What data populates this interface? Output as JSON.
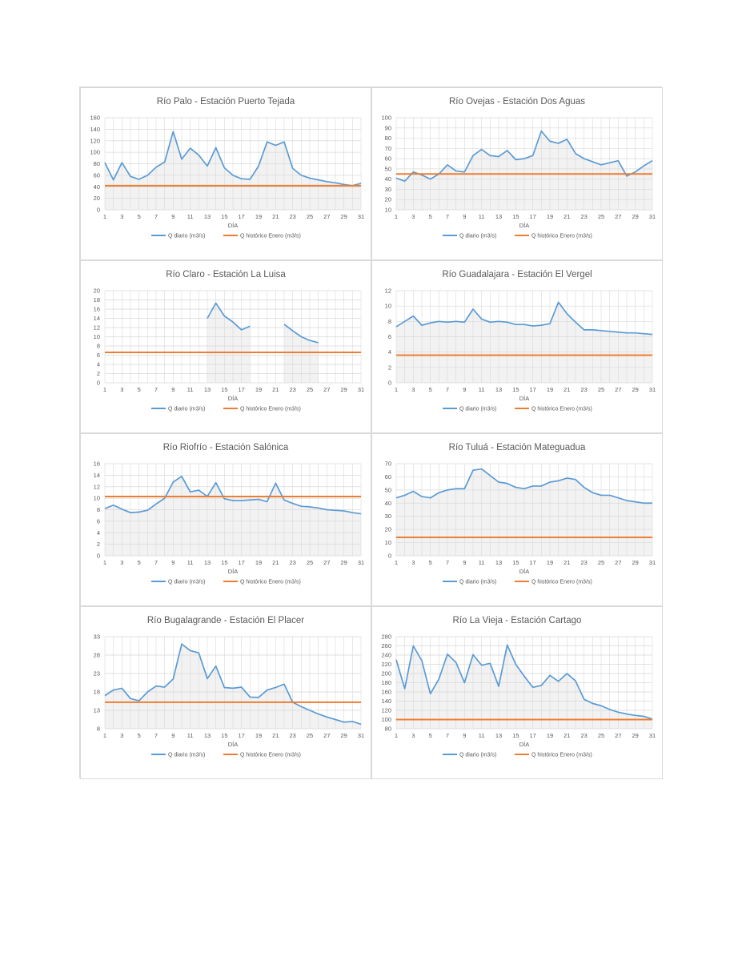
{
  "colors": {
    "daily": "#5b9bd5",
    "historic": "#ed7d31",
    "grid": "#d9d9d9",
    "text": "#595959"
  },
  "chart_data": [
    {
      "type": "line",
      "title": "Río Palo - Estación Puerto Tejada",
      "xlabel": "DÍA",
      "ylabel": "",
      "ylim": [
        0,
        160
      ],
      "yticks": [
        0,
        20,
        40,
        60,
        80,
        100,
        120,
        140,
        160
      ],
      "xtick_labels": [
        "1",
        "3",
        "5",
        "7",
        "9",
        "11",
        "13",
        "15",
        "17",
        "19",
        "21",
        "23",
        "25",
        "27",
        "29",
        "31"
      ],
      "x": [
        1,
        2,
        3,
        4,
        5,
        6,
        7,
        8,
        9,
        10,
        11,
        12,
        13,
        14,
        15,
        16,
        17,
        18,
        19,
        20,
        21,
        22,
        23,
        24,
        25,
        26,
        27,
        28,
        29,
        30,
        31
      ],
      "grid": true,
      "legend_position": "bottom",
      "series": [
        {
          "name": "Q diario (m3/s)",
          "values": [
            82,
            52,
            82,
            58,
            53,
            60,
            74,
            83,
            136,
            88,
            107,
            95,
            76,
            108,
            73,
            60,
            54,
            53,
            76,
            118,
            112,
            118,
            72,
            60,
            55,
            52,
            49,
            47,
            44,
            42,
            46
          ]
        },
        {
          "name": "Q histórico Enero (m3/s)",
          "values": [
            42,
            42,
            42,
            42,
            42,
            42,
            42,
            42,
            42,
            42,
            42,
            42,
            42,
            42,
            42,
            42,
            42,
            42,
            42,
            42,
            42,
            42,
            42,
            42,
            42,
            42,
            42,
            42,
            42,
            42,
            42
          ]
        }
      ]
    },
    {
      "type": "line",
      "title": "Río Ovejas - Estación Dos Aguas",
      "xlabel": "DÍA",
      "ylabel": "",
      "ylim": [
        10,
        100
      ],
      "yticks": [
        10,
        20,
        30,
        40,
        50,
        60,
        70,
        80,
        90,
        100
      ],
      "xtick_labels": [
        "1",
        "3",
        "5",
        "7",
        "9",
        "11",
        "13",
        "15",
        "17",
        "19",
        "21",
        "23",
        "25",
        "27",
        "29",
        "31"
      ],
      "x": [
        1,
        2,
        3,
        4,
        5,
        6,
        7,
        8,
        9,
        10,
        11,
        12,
        13,
        14,
        15,
        16,
        17,
        18,
        19,
        20,
        21,
        22,
        23,
        24,
        25,
        26,
        27,
        28,
        29,
        30,
        31
      ],
      "grid": true,
      "legend_position": "bottom",
      "series": [
        {
          "name": "Q diario (m3/s)",
          "values": [
            41,
            38,
            47,
            44,
            40,
            45,
            54,
            48,
            47,
            63,
            69,
            63,
            62,
            68,
            59,
            60,
            63,
            87,
            77,
            75,
            79,
            65,
            60,
            57,
            54,
            56,
            58,
            43,
            47,
            53,
            58
          ]
        },
        {
          "name": "Q histórico Enero (m3/s)",
          "values": [
            45,
            45,
            45,
            45,
            45,
            45,
            45,
            45,
            45,
            45,
            45,
            45,
            45,
            45,
            45,
            45,
            45,
            45,
            45,
            45,
            45,
            45,
            45,
            45,
            45,
            45,
            45,
            45,
            45,
            45,
            45
          ]
        }
      ]
    },
    {
      "type": "line",
      "title": "Río Claro - Estación La Luisa",
      "xlabel": "DÍA",
      "ylabel": "",
      "ylim": [
        0,
        20
      ],
      "yticks": [
        0,
        2,
        4,
        6,
        8,
        10,
        12,
        14,
        16,
        18,
        20
      ],
      "xtick_labels": [
        "1",
        "3",
        "5",
        "7",
        "9",
        "11",
        "13",
        "15",
        "17",
        "19",
        "21",
        "23",
        "25",
        "27",
        "29",
        "31"
      ],
      "x": [
        1,
        2,
        3,
        4,
        5,
        6,
        7,
        8,
        9,
        10,
        11,
        12,
        13,
        14,
        15,
        16,
        17,
        18,
        19,
        20,
        21,
        22,
        23,
        24,
        25,
        26,
        27,
        28,
        29,
        30,
        31
      ],
      "grid": true,
      "legend_position": "bottom",
      "series": [
        {
          "name": "Q diario (m3/s)",
          "values": [
            null,
            null,
            null,
            null,
            null,
            null,
            null,
            null,
            null,
            null,
            null,
            null,
            14,
            17.3,
            14.5,
            13.2,
            11.5,
            12.3,
            null,
            null,
            null,
            12.7,
            11.3,
            10,
            9.2,
            8.7,
            null,
            null,
            null,
            null,
            null
          ]
        },
        {
          "name": "Q histórico Enero (m3/s)",
          "values": [
            6.6,
            6.6,
            6.6,
            6.6,
            6.6,
            6.6,
            6.6,
            6.6,
            6.6,
            6.6,
            6.6,
            6.6,
            6.6,
            6.6,
            6.6,
            6.6,
            6.6,
            6.6,
            6.6,
            6.6,
            6.6,
            6.6,
            6.6,
            6.6,
            6.6,
            6.6,
            6.6,
            6.6,
            6.6,
            6.6,
            6.6
          ]
        }
      ]
    },
    {
      "type": "line",
      "title": "Río Guadalajara - Estación El Vergel",
      "xlabel": "DÍA",
      "ylabel": "",
      "ylim": [
        0,
        12
      ],
      "yticks": [
        0,
        2,
        4,
        6,
        8,
        10,
        12
      ],
      "xtick_labels": [
        "1",
        "3",
        "5",
        "7",
        "9",
        "11",
        "13",
        "15",
        "17",
        "19",
        "21",
        "23",
        "25",
        "27",
        "29",
        "31"
      ],
      "x": [
        1,
        2,
        3,
        4,
        5,
        6,
        7,
        8,
        9,
        10,
        11,
        12,
        13,
        14,
        15,
        16,
        17,
        18,
        19,
        20,
        21,
        22,
        23,
        24,
        25,
        26,
        27,
        28,
        29,
        30,
        31
      ],
      "grid": true,
      "legend_position": "bottom",
      "series": [
        {
          "name": "Q diario (m3/s)",
          "values": [
            7.3,
            8,
            8.7,
            7.5,
            7.8,
            8,
            7.9,
            8,
            7.9,
            9.6,
            8.3,
            7.9,
            8,
            7.9,
            7.6,
            7.6,
            7.4,
            7.5,
            7.7,
            10.5,
            9,
            7.9,
            6.9,
            6.9,
            6.8,
            6.7,
            6.6,
            6.5,
            6.5,
            6.4,
            6.3
          ]
        },
        {
          "name": "Q histórico Enero (m3/s)",
          "values": [
            3.6,
            3.6,
            3.6,
            3.6,
            3.6,
            3.6,
            3.6,
            3.6,
            3.6,
            3.6,
            3.6,
            3.6,
            3.6,
            3.6,
            3.6,
            3.6,
            3.6,
            3.6,
            3.6,
            3.6,
            3.6,
            3.6,
            3.6,
            3.6,
            3.6,
            3.6,
            3.6,
            3.6,
            3.6,
            3.6,
            3.6
          ]
        }
      ]
    },
    {
      "type": "line",
      "title": "Río Riofrío - Estación Salónica",
      "xlabel": "DÍA",
      "ylabel": "",
      "ylim": [
        0,
        16
      ],
      "yticks": [
        0,
        2,
        4,
        6,
        8,
        10,
        12,
        14,
        16
      ],
      "xtick_labels": [
        "1",
        "3",
        "5",
        "7",
        "9",
        "11",
        "13",
        "15",
        "17",
        "19",
        "21",
        "23",
        "25",
        "27",
        "29",
        "31"
      ],
      "x": [
        1,
        2,
        3,
        4,
        5,
        6,
        7,
        8,
        9,
        10,
        11,
        12,
        13,
        14,
        15,
        16,
        17,
        18,
        19,
        20,
        21,
        22,
        23,
        24,
        25,
        26,
        27,
        28,
        29,
        30,
        31
      ],
      "grid": true,
      "legend_position": "bottom",
      "series": [
        {
          "name": "Q diario (m3/s)",
          "values": [
            8.2,
            8.8,
            8.1,
            7.5,
            7.6,
            7.9,
            9,
            10,
            12.8,
            13.8,
            11.1,
            11.4,
            10.3,
            12.7,
            9.9,
            9.6,
            9.6,
            9.7,
            9.8,
            9.4,
            12.6,
            9.7,
            9.1,
            8.6,
            8.5,
            8.3,
            8,
            7.9,
            7.8,
            7.5,
            7.3
          ]
        },
        {
          "name": "Q histórico Enero (m3/s)",
          "values": [
            10.3,
            10.3,
            10.3,
            10.3,
            10.3,
            10.3,
            10.3,
            10.3,
            10.3,
            10.3,
            10.3,
            10.3,
            10.3,
            10.3,
            10.3,
            10.3,
            10.3,
            10.3,
            10.3,
            10.3,
            10.3,
            10.3,
            10.3,
            10.3,
            10.3,
            10.3,
            10.3,
            10.3,
            10.3,
            10.3,
            10.3
          ]
        }
      ]
    },
    {
      "type": "line",
      "title": "Río Tuluá - Estación Mateguadua",
      "xlabel": "DÍA",
      "ylabel": "",
      "ylim": [
        0,
        70
      ],
      "yticks": [
        0,
        10,
        20,
        30,
        40,
        50,
        60,
        70
      ],
      "xtick_labels": [
        "1",
        "3",
        "5",
        "7",
        "9",
        "11",
        "13",
        "15",
        "17",
        "19",
        "21",
        "23",
        "25",
        "27",
        "29",
        "31"
      ],
      "x": [
        1,
        2,
        3,
        4,
        5,
        6,
        7,
        8,
        9,
        10,
        11,
        12,
        13,
        14,
        15,
        16,
        17,
        18,
        19,
        20,
        21,
        22,
        23,
        24,
        25,
        26,
        27,
        28,
        29,
        30,
        31
      ],
      "grid": true,
      "legend_position": "bottom",
      "series": [
        {
          "name": "Q diario (m3/s)",
          "values": [
            44,
            46,
            49,
            45,
            44,
            48,
            50,
            51,
            51,
            65,
            66,
            61,
            56,
            55,
            52,
            51,
            53,
            53,
            56,
            57,
            59,
            58,
            52,
            48,
            46,
            46,
            44,
            42,
            41,
            40,
            40
          ]
        },
        {
          "name": "Q histórico Enero (m3/s)",
          "values": [
            14,
            14,
            14,
            14,
            14,
            14,
            14,
            14,
            14,
            14,
            14,
            14,
            14,
            14,
            14,
            14,
            14,
            14,
            14,
            14,
            14,
            14,
            14,
            14,
            14,
            14,
            14,
            14,
            14,
            14,
            14
          ]
        }
      ]
    },
    {
      "type": "line",
      "title": "Río Bugalagrande - Estación El Placer",
      "xlabel": "DÍA",
      "ylabel": "",
      "ylim": [
        8,
        33
      ],
      "yticks": [
        8,
        13,
        18,
        23,
        28,
        33
      ],
      "xtick_labels": [
        "1",
        "3",
        "5",
        "7",
        "9",
        "11",
        "13",
        "15",
        "17",
        "19",
        "21",
        "23",
        "25",
        "27",
        "29",
        "31"
      ],
      "x": [
        1,
        2,
        3,
        4,
        5,
        6,
        7,
        8,
        9,
        10,
        11,
        12,
        13,
        14,
        15,
        16,
        17,
        18,
        19,
        20,
        21,
        22,
        23,
        24,
        25,
        26,
        27,
        28,
        29,
        30,
        31
      ],
      "grid": true,
      "legend_position": "bottom",
      "series": [
        {
          "name": "Q diario (m3/s)",
          "values": [
            17,
            18.5,
            19,
            16.2,
            15.6,
            18,
            19.6,
            19.3,
            21.5,
            31,
            29.2,
            28.6,
            21.6,
            25,
            19.2,
            19,
            19.3,
            16.6,
            16.5,
            18.5,
            19.2,
            20.1,
            15.2,
            14,
            13,
            12,
            11.2,
            10.5,
            9.8,
            10,
            9.2
          ]
        },
        {
          "name": "Q histórico Enero (m3/s)",
          "values": [
            15.2,
            15.2,
            15.2,
            15.2,
            15.2,
            15.2,
            15.2,
            15.2,
            15.2,
            15.2,
            15.2,
            15.2,
            15.2,
            15.2,
            15.2,
            15.2,
            15.2,
            15.2,
            15.2,
            15.2,
            15.2,
            15.2,
            15.2,
            15.2,
            15.2,
            15.2,
            15.2,
            15.2,
            15.2,
            15.2,
            15.2
          ]
        }
      ]
    },
    {
      "type": "line",
      "title": "Río La Vieja - Estación Cartago",
      "xlabel": "DÍA",
      "ylabel": "",
      "ylim": [
        80,
        280
      ],
      "yticks": [
        80,
        100,
        120,
        140,
        160,
        180,
        200,
        220,
        240,
        260,
        280
      ],
      "xtick_labels": [
        "1",
        "3",
        "5",
        "7",
        "9",
        "11",
        "13",
        "15",
        "17",
        "19",
        "21",
        "23",
        "25",
        "27",
        "29",
        "31"
      ],
      "x": [
        1,
        2,
        3,
        4,
        5,
        6,
        7,
        8,
        9,
        10,
        11,
        12,
        13,
        14,
        15,
        16,
        17,
        18,
        19,
        20,
        21,
        22,
        23,
        24,
        25,
        26,
        27,
        28,
        29,
        30,
        31
      ],
      "grid": true,
      "legend_position": "bottom",
      "series": [
        {
          "name": "Q diario (m3/s)",
          "values": [
            230,
            167,
            260,
            228,
            156,
            188,
            242,
            224,
            180,
            241,
            218,
            222,
            172,
            262,
            220,
            194,
            170,
            174,
            196,
            183,
            200,
            184,
            144,
            135,
            130,
            122,
            116,
            112,
            109,
            107,
            101
          ]
        },
        {
          "name": "Q histórico Enero (m3/s)",
          "values": [
            100,
            100,
            100,
            100,
            100,
            100,
            100,
            100,
            100,
            100,
            100,
            100,
            100,
            100,
            100,
            100,
            100,
            100,
            100,
            100,
            100,
            100,
            100,
            100,
            100,
            100,
            100,
            100,
            100,
            100,
            100
          ]
        }
      ]
    }
  ]
}
